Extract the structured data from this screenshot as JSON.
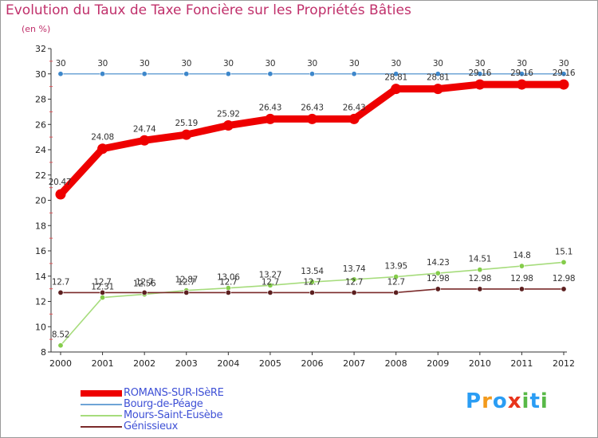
{
  "title": "Evolution du Taux de Taxe Foncière sur les Propriétés Bâties",
  "subtitle": "(en %)",
  "logo": {
    "letters": [
      "P",
      "r",
      "o",
      "x",
      "i",
      "t",
      "i"
    ],
    "colors": [
      "#2a9df4",
      "#f39a1c",
      "#2a9df4",
      "#e8341c",
      "#58b947",
      "#2a9df4",
      "#58b947"
    ]
  },
  "chart_data": {
    "type": "line",
    "title": "Evolution du Taux de Taxe Foncière sur les Propriétés Bâties",
    "ylabel": "(en %)",
    "xlabel": "",
    "ylim": [
      8,
      32
    ],
    "yticks": [
      8,
      10,
      12,
      14,
      16,
      18,
      20,
      22,
      24,
      26,
      28,
      30,
      32
    ],
    "categories": [
      "2000",
      "2001",
      "2002",
      "2003",
      "2004",
      "2005",
      "2006",
      "2007",
      "2008",
      "2009",
      "2010",
      "2011",
      "2012"
    ],
    "grid": false,
    "legend_position": "bottom-left",
    "series": [
      {
        "name": "ROMANS-SUR-ISèRE",
        "color": "#ee0000",
        "values": [
          20.47,
          24.08,
          24.74,
          25.19,
          25.92,
          26.43,
          26.43,
          26.43,
          28.81,
          28.81,
          29.16,
          29.16,
          29.16
        ],
        "labels": [
          "20.47",
          "24.08",
          "24.74",
          "25.19",
          "25.92",
          "26.43",
          "26.43",
          "26.43",
          "28.81",
          "28.81",
          "29.16",
          "29.16",
          "29.16"
        ]
      },
      {
        "name": "Bourg-de-Péage",
        "color": "#6ea4d6",
        "marker_color": "#3d87cb",
        "values": [
          30,
          30,
          30,
          30,
          30,
          30,
          30,
          30,
          30,
          30,
          30,
          30,
          30
        ],
        "labels": [
          "30",
          "30",
          "30",
          "30",
          "30",
          "30",
          "30",
          "30",
          "30",
          "30",
          "30",
          "30",
          "30"
        ]
      },
      {
        "name": "Mours-Saint-Eusèbe",
        "color": "#a6dc7c",
        "marker_color": "#84cc4a",
        "values": [
          8.52,
          12.31,
          12.56,
          12.87,
          13.06,
          13.27,
          13.54,
          13.74,
          13.95,
          14.23,
          14.51,
          14.8,
          15.1
        ],
        "labels": [
          "8.52",
          "12.31",
          "12.56",
          "12.87",
          "13.06",
          "13.27",
          "13.54",
          "13.74",
          "13.95",
          "14.23",
          "14.51",
          "14.8",
          "15.1"
        ]
      },
      {
        "name": "Génissieux",
        "color": "#7a2a2a",
        "marker_color": "#5c1f1f",
        "values": [
          12.7,
          12.7,
          12.7,
          12.7,
          12.7,
          12.7,
          12.7,
          12.7,
          12.7,
          12.98,
          12.98,
          12.98,
          12.98
        ],
        "labels": [
          "12.7",
          "12.7",
          "12.7",
          "12.7",
          "12.7",
          "12.7",
          "12.7",
          "12.7",
          "12.7",
          "12.98",
          "12.98",
          "12.98",
          "12.98"
        ]
      }
    ]
  }
}
